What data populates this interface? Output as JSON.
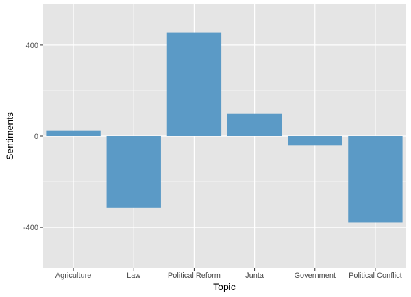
{
  "chart_data": {
    "type": "bar",
    "title": "",
    "xlabel": "Topic",
    "ylabel": "Sentiments",
    "categories": [
      "Agriculture",
      "Law",
      "Political Reform",
      "Junta",
      "Government",
      "Political Conflict"
    ],
    "values": [
      25,
      -315,
      455,
      100,
      -40,
      -380
    ],
    "ylim": [
      -580,
      580
    ],
    "yticks": [
      400,
      0,
      -400
    ],
    "ytick_labels": [
      "400",
      "0",
      "-400"
    ],
    "grid": true,
    "legend": "none",
    "colors": {
      "bar": "#5b9ac6",
      "panel": "#e5e5e5",
      "grid_major": "#ffffff",
      "grid_minor": "#f2f2f2"
    }
  }
}
